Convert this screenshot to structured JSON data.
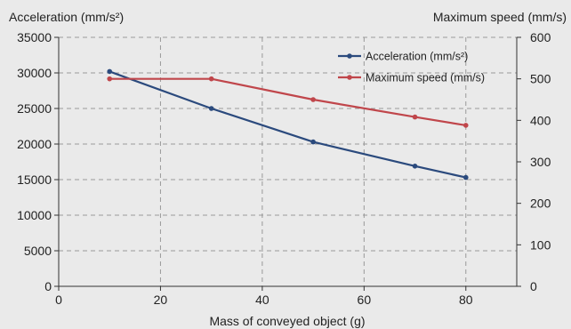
{
  "chart_data": {
    "type": "line",
    "xlabel": "Mass of conveyed object (g)",
    "ylabel_left": "Acceleration (mm/s²)",
    "ylabel_right": "Maximum speed (mm/s)",
    "xlim": [
      0,
      90
    ],
    "ylim_left": [
      0,
      35000
    ],
    "ylim_right": [
      0,
      600
    ],
    "x_ticks": [
      0,
      20,
      40,
      60,
      80
    ],
    "y_left_ticks": [
      0,
      5000,
      10000,
      15000,
      20000,
      25000,
      30000,
      35000
    ],
    "y_right_ticks": [
      0,
      100,
      200,
      300,
      400,
      500,
      600
    ],
    "x_tick_labels": [
      "0",
      "20",
      "40",
      "60",
      "80"
    ],
    "y_left_tick_labels": [
      "0",
      "5000",
      "10000",
      "15000",
      "20000",
      "25000",
      "30000",
      "35000"
    ],
    "y_right_tick_labels": [
      "0",
      "100",
      "200",
      "300",
      "400",
      "500",
      "600"
    ],
    "grid": true,
    "legend_position": "top-right",
    "series": [
      {
        "name": "Acceleration (mm/s²)",
        "axis": "left",
        "color": "#2b4a7d",
        "x": [
          10,
          30,
          50,
          70,
          80
        ],
        "y": [
          30200,
          25000,
          20300,
          16900,
          15300
        ]
      },
      {
        "name": "Maximum speed (mm/s)",
        "axis": "right",
        "color": "#c0464b",
        "x": [
          10,
          30,
          50,
          70,
          80
        ],
        "y": [
          500,
          500,
          450,
          408,
          388
        ]
      }
    ]
  }
}
